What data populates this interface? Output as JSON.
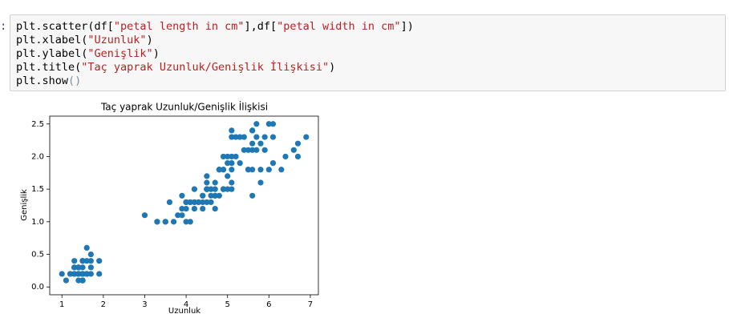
{
  "prompt": ":",
  "code": [
    [
      {
        "text": "plt.scatter(df["
      },
      {
        "text": "\"petal length in cm\"",
        "color": "#ba2121"
      },
      {
        "text": "],df["
      },
      {
        "text": "\"petal width in cm\"",
        "color": "#ba2121"
      },
      {
        "text": "])"
      }
    ],
    [
      {
        "text": "plt.xlabel("
      },
      {
        "text": "\"Uzunluk\"",
        "color": "#ba2121"
      },
      {
        "text": ")"
      }
    ],
    [
      {
        "text": "plt.ylabel("
      },
      {
        "text": "\"Genişlik\"",
        "color": "#ba2121"
      },
      {
        "text": ")"
      }
    ],
    [
      {
        "text": "plt.title("
      },
      {
        "text": "\"Taç yaprak Uzunluk/Genişlik İlişkisi\"",
        "color": "#ba2121"
      },
      {
        "text": ")"
      }
    ],
    [
      {
        "text": "plt.show"
      },
      {
        "text": "()",
        "color": "#7a8fa6"
      }
    ]
  ],
  "chart_data": {
    "type": "scatter",
    "title": "Taç yaprak Uzunluk/Genişlik İlişkisi",
    "xlabel": "Uzunluk",
    "ylabel": "Genişlik",
    "color": "#1f77b4",
    "x": [
      1.4,
      1.4,
      1.3,
      1.5,
      1.4,
      1.7,
      1.4,
      1.5,
      1.4,
      1.5,
      1.5,
      1.6,
      1.4,
      1.1,
      1.2,
      1.5,
      1.3,
      1.4,
      1.7,
      1.5,
      1.7,
      1.5,
      1.0,
      1.7,
      1.9,
      1.6,
      1.6,
      1.5,
      1.4,
      1.6,
      1.6,
      1.5,
      1.5,
      1.4,
      1.5,
      1.2,
      1.3,
      1.5,
      1.3,
      1.5,
      1.3,
      1.3,
      1.3,
      1.6,
      1.9,
      1.4,
      1.6,
      1.4,
      1.5,
      1.4,
      4.7,
      4.5,
      4.9,
      4.0,
      4.6,
      4.5,
      4.7,
      3.3,
      4.6,
      3.9,
      3.5,
      4.2,
      4.0,
      4.7,
      3.6,
      4.4,
      4.5,
      4.1,
      4.5,
      3.9,
      4.8,
      4.0,
      4.9,
      4.7,
      4.3,
      4.4,
      4.8,
      5.0,
      4.5,
      3.5,
      3.8,
      3.7,
      3.9,
      5.1,
      4.5,
      4.5,
      4.7,
      4.4,
      4.1,
      4.0,
      4.4,
      4.6,
      4.0,
      3.3,
      4.2,
      4.2,
      4.2,
      4.3,
      3.0,
      4.1,
      6.0,
      5.1,
      5.9,
      5.6,
      5.8,
      6.6,
      4.5,
      6.3,
      5.8,
      6.1,
      5.1,
      5.3,
      5.5,
      5.0,
      5.1,
      5.3,
      5.5,
      6.7,
      6.9,
      5.0,
      5.7,
      4.9,
      6.7,
      4.9,
      5.7,
      6.0,
      4.8,
      4.9,
      5.6,
      5.8,
      6.1,
      6.4,
      5.6,
      5.1,
      5.6,
      6.1,
      5.6,
      5.5,
      4.8,
      5.4,
      5.6,
      5.1,
      5.1,
      5.9,
      5.7,
      5.2,
      5.0,
      5.2,
      5.4,
      5.1
    ],
    "values": [
      0.2,
      0.2,
      0.2,
      0.2,
      0.2,
      0.4,
      0.3,
      0.2,
      0.2,
      0.1,
      0.2,
      0.2,
      0.1,
      0.1,
      0.2,
      0.4,
      0.4,
      0.3,
      0.3,
      0.3,
      0.2,
      0.4,
      0.2,
      0.5,
      0.2,
      0.2,
      0.4,
      0.2,
      0.2,
      0.2,
      0.2,
      0.4,
      0.1,
      0.2,
      0.1,
      0.2,
      0.2,
      0.1,
      0.2,
      0.2,
      0.3,
      0.3,
      0.2,
      0.6,
      0.4,
      0.3,
      0.2,
      0.2,
      0.2,
      0.2,
      1.4,
      1.5,
      1.5,
      1.3,
      1.5,
      1.3,
      1.6,
      1.0,
      1.3,
      1.4,
      1.0,
      1.5,
      1.0,
      1.4,
      1.3,
      1.4,
      1.5,
      1.0,
      1.5,
      1.1,
      1.8,
      1.3,
      1.5,
      1.2,
      1.3,
      1.4,
      1.4,
      1.7,
      1.5,
      1.0,
      1.1,
      1.0,
      1.2,
      1.6,
      1.5,
      1.6,
      1.5,
      1.3,
      1.3,
      1.3,
      1.2,
      1.4,
      1.2,
      1.0,
      1.3,
      1.2,
      1.3,
      1.3,
      1.1,
      1.3,
      2.5,
      1.9,
      2.1,
      1.8,
      2.2,
      2.1,
      1.7,
      1.8,
      1.8,
      2.5,
      2.0,
      1.9,
      2.1,
      2.0,
      2.4,
      2.3,
      1.8,
      2.2,
      2.3,
      1.5,
      2.3,
      2.0,
      2.0,
      1.8,
      2.1,
      1.8,
      1.8,
      1.8,
      2.1,
      1.6,
      1.9,
      2.0,
      2.2,
      1.5,
      1.4,
      2.3,
      2.4,
      1.8,
      1.8,
      2.1,
      2.4,
      2.3,
      1.9,
      2.3,
      2.5,
      2.3,
      1.9,
      2.0,
      2.3,
      1.8
    ],
    "xlim": [
      0.705,
      7.195
    ],
    "ylim": [
      -0.12,
      2.62
    ],
    "xticks": [
      1,
      2,
      3,
      4,
      5,
      6,
      7
    ],
    "yticks": [
      {
        "value": 0,
        "label": "0.0"
      },
      0.5,
      {
        "value": 1,
        "label": "1.0"
      },
      1.5,
      {
        "value": 2,
        "label": "2.0"
      },
      2.5
    ]
  }
}
